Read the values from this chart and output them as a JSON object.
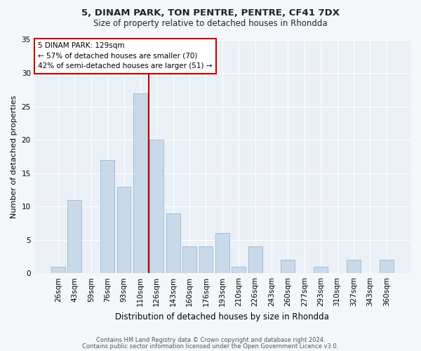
{
  "title1": "5, DINAM PARK, TON PENTRE, PENTRE, CF41 7DX",
  "title2": "Size of property relative to detached houses in Rhondda",
  "xlabel": "Distribution of detached houses by size in Rhondda",
  "ylabel": "Number of detached properties",
  "categories": [
    "26sqm",
    "43sqm",
    "59sqm",
    "76sqm",
    "93sqm",
    "110sqm",
    "126sqm",
    "143sqm",
    "160sqm",
    "176sqm",
    "193sqm",
    "210sqm",
    "226sqm",
    "243sqm",
    "260sqm",
    "277sqm",
    "293sqm",
    "310sqm",
    "327sqm",
    "343sqm",
    "360sqm"
  ],
  "values": [
    1,
    11,
    0,
    17,
    13,
    27,
    20,
    9,
    4,
    4,
    6,
    1,
    4,
    0,
    2,
    0,
    1,
    0,
    2,
    0,
    2
  ],
  "bar_color": "#c8daea",
  "bar_edge_color": "#a0bfd4",
  "vline_color": "#cc0000",
  "ylim": [
    0,
    35
  ],
  "yticks": [
    0,
    5,
    10,
    15,
    20,
    25,
    30,
    35
  ],
  "annotation_title": "5 DINAM PARK: 129sqm",
  "annotation_line1": "← 57% of detached houses are smaller (70)",
  "annotation_line2": "42% of semi-detached houses are larger (51) →",
  "annotation_box_color": "#ffffff",
  "annotation_box_edge": "#cc0000",
  "footnote1": "Contains HM Land Registry data © Crown copyright and database right 2024.",
  "footnote2": "Contains public sector information licensed under the Open Government Licence v3.0.",
  "fig_background": "#f4f7fa",
  "plot_background": "#eaf0f6",
  "grid_color": "#ffffff"
}
